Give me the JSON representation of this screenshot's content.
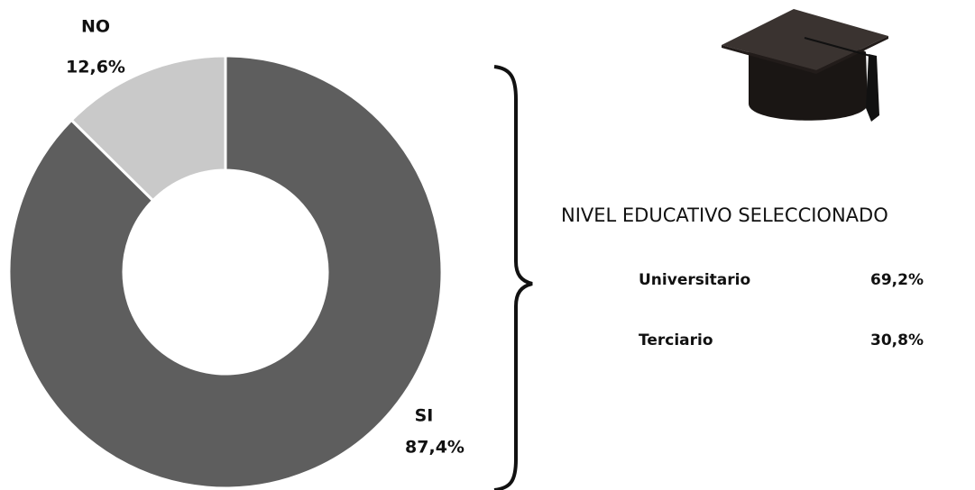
{
  "chart_data": {
    "type": "donut",
    "categories": [
      "SI",
      "NO"
    ],
    "values": [
      87.4,
      12.6
    ],
    "value_labels": [
      "87,4%",
      "12,6%"
    ],
    "colors": [
      "#5e5e5e",
      "#c9c9c9"
    ]
  },
  "table": {
    "title": "NIVEL EDUCATIVO SELECCIONADO",
    "rows": [
      [
        "Universitario",
        "69,2%"
      ],
      [
        "Terciario",
        "30,8%"
      ]
    ]
  }
}
